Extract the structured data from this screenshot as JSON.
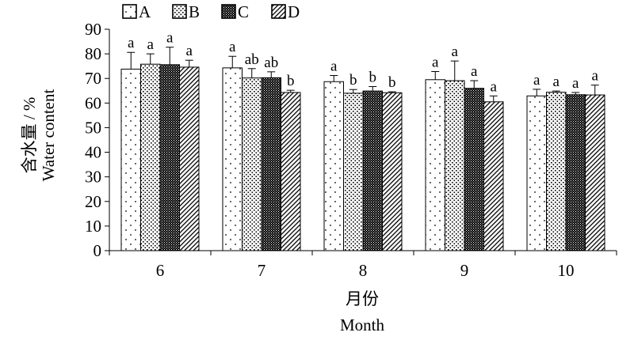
{
  "chart_data": {
    "type": "bar",
    "categories": [
      "6",
      "7",
      "8",
      "9",
      "10"
    ],
    "series": [
      {
        "name": "A",
        "values": [
          73.8,
          74.3,
          68.7,
          69.5,
          62.9
        ],
        "errors": [
          6.8,
          4.7,
          2.5,
          3.3,
          2.7
        ],
        "letters": [
          "a",
          "a",
          "a",
          "a",
          "a"
        ]
      },
      {
        "name": "B",
        "values": [
          75.8,
          70.2,
          64.0,
          69.1,
          64.4
        ],
        "errors": [
          4.2,
          3.8,
          1.5,
          8.0,
          0.5
        ],
        "letters": [
          "a",
          "ab",
          "b",
          "a",
          "a"
        ]
      },
      {
        "name": "C",
        "values": [
          75.6,
          70.3,
          64.9,
          66.0,
          63.4
        ],
        "errors": [
          7.1,
          2.4,
          1.8,
          3.1,
          0.9
        ],
        "letters": [
          "a",
          "ab",
          "b",
          "a",
          "a"
        ]
      },
      {
        "name": "D",
        "values": [
          74.6,
          64.3,
          64.2,
          60.5,
          63.3
        ],
        "errors": [
          2.8,
          0.9,
          0.4,
          2.4,
          4.0
        ],
        "letters": [
          "a",
          "b",
          "b",
          "a",
          "a"
        ]
      }
    ],
    "ylim": [
      0,
      90
    ],
    "yticks": [
      "0",
      "10",
      "20",
      "30",
      "40",
      "50",
      "60",
      "70",
      "80",
      "90"
    ],
    "ylabel_cn": "含水量 / %",
    "ylabel_en": "Water content",
    "xlabel_cn": "月份",
    "xlabel_en": "Month",
    "legend_position": "top-left",
    "grid": false
  }
}
